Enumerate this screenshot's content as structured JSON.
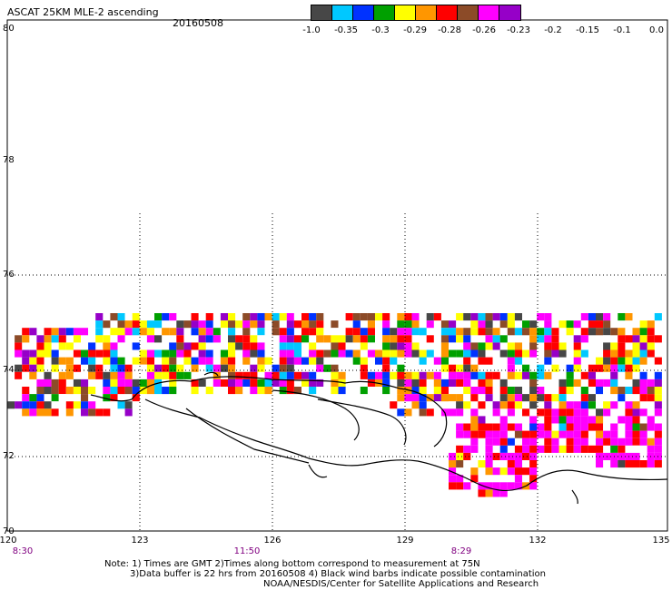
{
  "title": "ASCAT 25KM MLE-2 ascending",
  "date": "20160508",
  "colorbar": {
    "colors": [
      "#474747",
      "#00c8ff",
      "#0032ff",
      "#00a000",
      "#ffff00",
      "#ff9600",
      "#ff0000",
      "#8c4b28",
      "#ff00ff",
      "#9600c8"
    ],
    "labels": [
      "-1.0",
      "-0.35",
      "-0.3",
      "-0.29",
      "-0.28",
      "-0.26",
      "-0.23",
      "-0.2",
      "-0.15",
      "-0.1",
      "0.0"
    ]
  },
  "axes": {
    "lat_labels": [
      "80",
      "78",
      "76",
      "74",
      "72",
      "70"
    ],
    "lon_labels": [
      "120",
      "123",
      "126",
      "129",
      "132",
      "135"
    ],
    "time_labels": [
      "8:30",
      "11:50",
      "8:29"
    ]
  },
  "notes": {
    "line1": "Note: 1) Times are GMT 2)Times along bottom correspond to measurement at 75N",
    "line2": "3)Data buffer is 22 hrs from 20160508 4) Black wind barbs indicate possible contamination",
    "line3": "NOAA/NESDIS/Center for Satellite Applications and Research"
  }
}
